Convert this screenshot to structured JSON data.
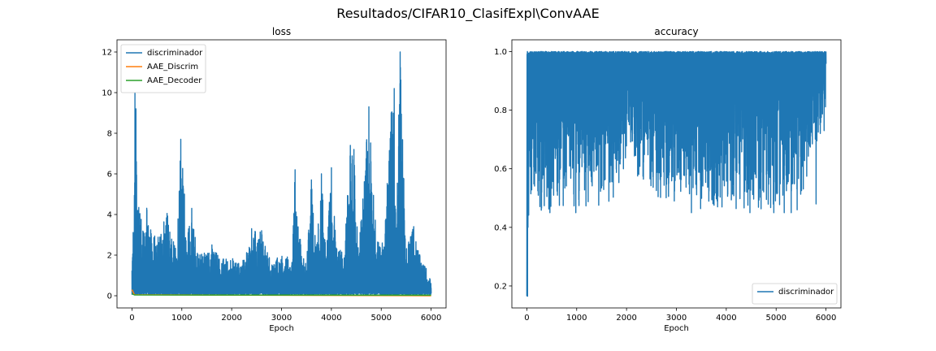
{
  "figure": {
    "suptitle": "Resultados/CIFAR10_ClasifExpl\\ConvAAE"
  },
  "colors": {
    "blue": "#1f77b4",
    "orange": "#ff7f0e",
    "green": "#2ca02c"
  },
  "chart_data": [
    {
      "type": "line",
      "title": "loss",
      "xlabel": "Epoch",
      "ylabel": "",
      "xlim": [
        -300,
        6300
      ],
      "ylim": [
        -0.6,
        12.6
      ],
      "xticks": [
        "0",
        "1000",
        "2000",
        "3000",
        "4000",
        "5000",
        "6000"
      ],
      "xtick_values": [
        0,
        1000,
        2000,
        3000,
        4000,
        5000,
        6000
      ],
      "yticks": [
        "0",
        "2",
        "4",
        "6",
        "8",
        "10",
        "12"
      ],
      "ytick_values": [
        0,
        2,
        4,
        6,
        8,
        10,
        12
      ],
      "legend": {
        "placement": "upper-left",
        "entries": [
          "discriminador",
          "AAE_Discrim",
          "AAE_Decoder"
        ]
      },
      "series": [
        {
          "name": "discriminador",
          "color": "#1f77b4",
          "style": "dense-oscillating",
          "floor": 0.05,
          "envelope": [
            [
              0,
              2.8
            ],
            [
              40,
              3.5
            ],
            [
              60,
              10.0
            ],
            [
              80,
              9.2
            ],
            [
              150,
              4.4
            ],
            [
              250,
              3.3
            ],
            [
              300,
              4.4
            ],
            [
              400,
              3.3
            ],
            [
              500,
              2.8
            ],
            [
              600,
              3.2
            ],
            [
              680,
              4.3
            ],
            [
              800,
              3.2
            ],
            [
              900,
              2.2
            ],
            [
              980,
              7.7
            ],
            [
              1050,
              5.0
            ],
            [
              1100,
              3.0
            ],
            [
              1200,
              4.3
            ],
            [
              1300,
              2.3
            ],
            [
              1500,
              2.1
            ],
            [
              1600,
              2.6
            ],
            [
              1800,
              1.8
            ],
            [
              2000,
              1.9
            ],
            [
              2200,
              1.5
            ],
            [
              2400,
              3.3
            ],
            [
              2600,
              3.2
            ],
            [
              2800,
              1.6
            ],
            [
              3000,
              2.1
            ],
            [
              3200,
              1.8
            ],
            [
              3270,
              6.2
            ],
            [
              3400,
              2.2
            ],
            [
              3500,
              1.6
            ],
            [
              3600,
              5.7
            ],
            [
              3700,
              2.4
            ],
            [
              3800,
              6.0
            ],
            [
              3900,
              2.1
            ],
            [
              4000,
              6.3
            ],
            [
              4100,
              2.6
            ],
            [
              4250,
              2.2
            ],
            [
              4380,
              7.4
            ],
            [
              4450,
              7.2
            ],
            [
              4550,
              2.2
            ],
            [
              4750,
              9.3
            ],
            [
              4900,
              3.2
            ],
            [
              5050,
              2.5
            ],
            [
              5200,
              9.0
            ],
            [
              5260,
              10.2
            ],
            [
              5300,
              3.3
            ],
            [
              5380,
              12.0
            ],
            [
              5500,
              2.6
            ],
            [
              5650,
              3.4
            ],
            [
              5800,
              1.7
            ],
            [
              5900,
              1.4
            ],
            [
              6000,
              0.7
            ]
          ],
          "spikes": [
            [
              60,
              10.0
            ],
            [
              80,
              9.2
            ],
            [
              980,
              7.7
            ],
            [
              1050,
              5.0
            ],
            [
              1200,
              4.3
            ],
            [
              2400,
              3.3
            ],
            [
              2600,
              3.2
            ],
            [
              3270,
              6.2
            ],
            [
              3600,
              5.7
            ],
            [
              3800,
              6.0
            ],
            [
              4000,
              6.3
            ],
            [
              4380,
              7.4
            ],
            [
              4450,
              7.2
            ],
            [
              4750,
              9.3
            ],
            [
              5200,
              9.0
            ],
            [
              5260,
              10.2
            ],
            [
              5380,
              12.0
            ],
            [
              5650,
              3.4
            ]
          ]
        },
        {
          "name": "AAE_Discrim",
          "color": "#ff7f0e",
          "style": "flat",
          "points": [
            [
              0,
              0.3
            ],
            [
              50,
              0.05
            ],
            [
              6000,
              0.0
            ]
          ]
        },
        {
          "name": "AAE_Decoder",
          "color": "#2ca02c",
          "style": "flat",
          "points": [
            [
              0,
              0.1
            ],
            [
              50,
              0.04
            ],
            [
              6000,
              0.03
            ]
          ]
        }
      ]
    },
    {
      "type": "line",
      "title": "accuracy",
      "xlabel": "Epoch",
      "ylabel": "",
      "xlim": [
        -300,
        6300
      ],
      "ylim": [
        0.125,
        1.04
      ],
      "xticks": [
        "0",
        "1000",
        "2000",
        "3000",
        "4000",
        "5000",
        "6000"
      ],
      "xtick_values": [
        0,
        1000,
        2000,
        3000,
        4000,
        5000,
        6000
      ],
      "yticks": [
        "0.2",
        "0.4",
        "0.6",
        "0.8",
        "1.0"
      ],
      "ytick_values": [
        0.2,
        0.4,
        0.6,
        0.8,
        1.0
      ],
      "legend": {
        "placement": "lower-right",
        "entries": [
          "discriminador"
        ]
      },
      "series": [
        {
          "name": "discriminador",
          "color": "#1f77b4",
          "style": "dense-oscillating",
          "ceiling": 1.0,
          "first_value": 0.165,
          "lower_envelope": [
            [
              0,
              0.4
            ],
            [
              50,
              0.45
            ],
            [
              1000,
              0.45
            ],
            [
              1200,
              0.47
            ],
            [
              1600,
              0.46
            ],
            [
              1800,
              0.5
            ],
            [
              2000,
              0.55
            ],
            [
              2050,
              0.8
            ],
            [
              2100,
              0.6
            ],
            [
              2400,
              0.52
            ],
            [
              2800,
              0.47
            ],
            [
              3000,
              0.48
            ],
            [
              3400,
              0.46
            ],
            [
              3800,
              0.45
            ],
            [
              4200,
              0.45
            ],
            [
              4600,
              0.46
            ],
            [
              5000,
              0.45
            ],
            [
              5500,
              0.46
            ],
            [
              5900,
              0.72
            ],
            [
              6000,
              0.8
            ]
          ],
          "dips": [
            [
              10,
              0.165
            ],
            [
              20,
              0.4
            ],
            [
              460,
              0.45
            ],
            [
              980,
              0.45
            ],
            [
              2050,
              0.75
            ],
            [
              3300,
              0.45
            ],
            [
              4470,
              0.45
            ],
            [
              4950,
              0.45
            ],
            [
              5160,
              0.45
            ],
            [
              5300,
              0.45
            ],
            [
              5420,
              0.46
            ],
            [
              5800,
              0.48
            ],
            [
              5960,
              0.73
            ]
          ]
        }
      ]
    }
  ]
}
